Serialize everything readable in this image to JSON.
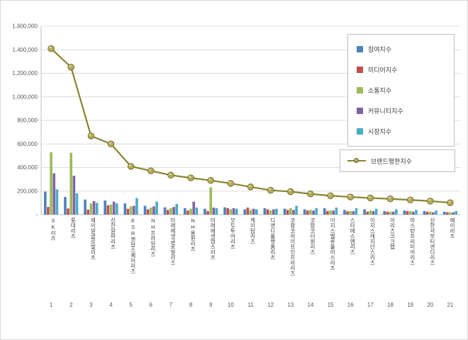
{
  "page": {
    "background": "#ffffff",
    "border_color": "#d9d9d9"
  },
  "chart_data": {
    "type": "bar",
    "subtype": "grouped-bars-with-line-overlay",
    "grid": true,
    "legend_position": "top-right",
    "categories": [
      "SK리츠",
      "롯데리츠",
      "제이알글로벌리츠",
      "신한알파리츠",
      "ESR켄달스퀘어리츠",
      "NH프라임리츠",
      "미래에셋글로벌리츠",
      "NH올원리츠",
      "미래에셋맵스리츠",
      "모두투어리츠",
      "케이탑리츠",
      "디앤디플랫폼리츠",
      "코람코라이프인프라리츠",
      "코람코더원리츠",
      "이지스밸류플러스리츠",
      "스타에스엠리츠",
      "이지스레지던스리츠",
      "이리츠코크렙",
      "마스턴프리미어리츠",
      "신한서부티엔디리츠",
      "에이리츠"
    ],
    "ranks": [
      "1",
      "2",
      "3",
      "4",
      "5",
      "6",
      "7",
      "8",
      "9",
      "10",
      "11",
      "12",
      "13",
      "14",
      "15",
      "16",
      "17",
      "18",
      "19",
      "20",
      "21"
    ],
    "series": [
      {
        "name": "참여지수",
        "color": "#4F81BD",
        "values": [
          195000,
          150000,
          128000,
          120000,
          95000,
          75000,
          62000,
          55000,
          50000,
          62000,
          45000,
          55000,
          50000,
          45000,
          55000,
          40000,
          45000,
          30000,
          35000,
          30000,
          25000
        ]
      },
      {
        "name": "미디어지수",
        "color": "#C0504D",
        "values": [
          65000,
          52000,
          42000,
          80000,
          50000,
          45000,
          40000,
          35000,
          30000,
          55000,
          60000,
          45000,
          40000,
          35000,
          30000,
          28000,
          25000,
          25000,
          30000,
          25000,
          20000
        ]
      },
      {
        "name": "소통지수",
        "color": "#9BBB59",
        "values": [
          530000,
          525000,
          95000,
          85000,
          70000,
          60000,
          55000,
          50000,
          232000,
          45000,
          40000,
          35000,
          55000,
          40000,
          35000,
          30000,
          35000,
          25000,
          30000,
          25000,
          20000
        ]
      },
      {
        "name": "커뮤니티지수",
        "color": "#8064A2",
        "values": [
          350000,
          330000,
          115000,
          110000,
          75000,
          70000,
          65000,
          110000,
          60000,
          55000,
          50000,
          45000,
          40000,
          35000,
          35000,
          30000,
          30000,
          25000,
          25000,
          20000,
          20000
        ]
      },
      {
        "name": "시장지수",
        "color": "#4BACC6",
        "values": [
          215000,
          180000,
          100000,
          95000,
          140000,
          110000,
          90000,
          60000,
          55000,
          50000,
          45000,
          50000,
          75000,
          55000,
          60000,
          55000,
          50000,
          45000,
          40000,
          35000,
          30000
        ]
      }
    ],
    "line_series": {
      "name": "브랜드평판지수",
      "color": "#87852F",
      "marker_fill": "#B5AB5A",
      "marker_stroke": "#6F6B25",
      "values": [
        1410000,
        1252000,
        668000,
        600000,
        410000,
        372000,
        335000,
        312000,
        290000,
        265000,
        235000,
        207000,
        195000,
        176000,
        160000,
        150000,
        141000,
        134000,
        125000,
        115000,
        101000
      ]
    },
    "y_axis": {
      "min": 0,
      "max": 1600000,
      "tick_interval": 200000,
      "tick_labels": [
        "-",
        "200,000",
        "400,000",
        "600,000",
        "800,000",
        "1,000,000",
        "1,200,000",
        "1,400,000",
        "1,600,000"
      ]
    }
  }
}
